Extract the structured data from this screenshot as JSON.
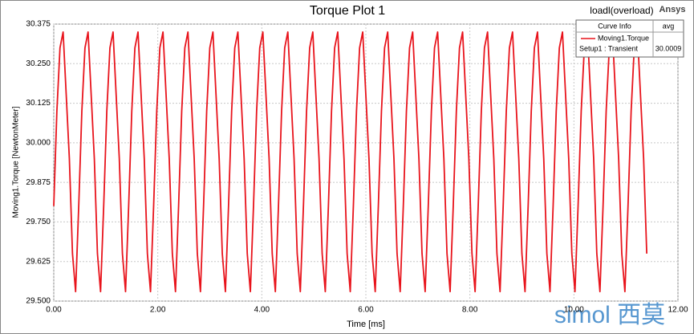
{
  "chart_data": {
    "type": "line",
    "title": "Torque Plot 1",
    "header_left": "loadl(overload)",
    "header_right": "Ansys",
    "x_label": "Time [ms]",
    "y_label": "Moving1.Torque [NewtonMeter]",
    "watermark": "simol 西莫",
    "xlim": [
      0,
      12
    ],
    "xticks": [
      {
        "value": 0,
        "label": "0.00"
      },
      {
        "value": 2,
        "label": "2.00"
      },
      {
        "value": 4,
        "label": "4.00"
      },
      {
        "value": 6,
        "label": "6.00"
      },
      {
        "value": 8,
        "label": "8.00"
      },
      {
        "value": 10,
        "label": "10.00"
      },
      {
        "value": 12,
        "label": "12.00"
      }
    ],
    "ylim": [
      29.5,
      30.375
    ],
    "yticks": [
      {
        "value": 29.5,
        "label": "29.500"
      },
      {
        "value": 29.625,
        "label": "29.625"
      },
      {
        "value": 29.75,
        "label": "29.750"
      },
      {
        "value": 29.875,
        "label": "29.875"
      },
      {
        "value": 30,
        "label": "30.000"
      },
      {
        "value": 30.125,
        "label": "30.125"
      },
      {
        "value": 30.25,
        "label": "30.250"
      },
      {
        "value": 30.375,
        "label": "30.375"
      }
    ],
    "grid": true,
    "legend": {
      "columns": [
        "Curve Info",
        "avg"
      ],
      "rows": [
        [
          "Moving1.Torque",
          ""
        ],
        [
          "Setup1 : Transient",
          "30.0009"
        ]
      ]
    },
    "x": [
      0,
      0.06,
      0.12,
      0.18,
      0.24,
      0.3,
      0.36,
      0.42,
      0.48,
      0.54,
      0.6,
      0.66,
      0.72,
      0.78,
      0.84,
      0.9,
      0.96,
      1.02,
      1.08,
      1.14,
      1.2,
      1.26,
      1.32,
      1.38,
      1.44,
      1.5,
      1.56,
      1.62,
      1.68,
      1.74,
      1.8,
      1.86,
      1.92,
      1.98,
      2.04,
      2.1,
      2.16,
      2.22,
      2.28,
      2.34,
      2.4,
      2.46,
      2.52,
      2.58,
      2.64,
      2.7,
      2.76,
      2.82,
      2.88,
      2.94,
      3,
      3.06,
      3.12,
      3.18,
      3.24,
      3.3,
      3.36,
      3.42,
      3.48,
      3.54,
      3.6,
      3.66,
      3.72,
      3.78,
      3.84,
      3.9,
      3.96,
      4.02,
      4.08,
      4.14,
      4.2,
      4.26,
      4.32,
      4.38,
      4.44,
      4.5,
      4.56,
      4.62,
      4.68,
      4.74,
      4.8,
      4.86,
      4.92,
      4.98,
      5.04,
      5.1,
      5.16,
      5.22,
      5.28,
      5.34,
      5.4,
      5.46,
      5.52,
      5.58,
      5.64,
      5.7,
      5.76,
      5.82,
      5.88,
      5.94,
      6,
      6.06,
      6.12,
      6.18,
      6.24,
      6.3,
      6.36,
      6.42,
      6.48,
      6.54,
      6.6,
      6.66,
      6.72,
      6.78,
      6.84,
      6.9,
      6.96,
      7.02,
      7.08,
      7.14,
      7.2,
      7.26,
      7.32,
      7.38,
      7.44,
      7.5,
      7.56,
      7.62,
      7.68,
      7.74,
      7.8,
      7.86,
      7.92,
      7.98,
      8.04,
      8.1,
      8.16,
      8.22,
      8.28,
      8.34,
      8.4,
      8.46,
      8.52,
      8.58,
      8.64,
      8.7,
      8.76,
      8.82,
      8.88,
      8.94,
      9,
      9.06,
      9.12,
      9.18,
      9.24,
      9.3,
      9.36,
      9.42,
      9.48,
      9.54,
      9.6,
      9.66,
      9.72,
      9.78,
      9.84,
      9.9,
      9.96,
      10.02,
      10.08,
      10.14,
      10.2,
      10.26,
      10.32,
      10.38,
      10.44,
      10.5,
      10.56,
      10.62,
      10.68,
      10.74,
      10.8,
      10.86,
      10.92,
      10.98,
      11.04,
      11.1,
      11.16,
      11.22,
      11.28,
      11.34,
      11.4
    ],
    "series": [
      {
        "name": "Moving1.Torque",
        "color": "#e8141c",
        "values": [
          29.8,
          30.1,
          30.3,
          30.35,
          30.15,
          29.95,
          29.65,
          29.53,
          29.8,
          30.1,
          30.3,
          30.35,
          30.15,
          29.95,
          29.65,
          29.53,
          29.8,
          30.1,
          30.3,
          30.35,
          30.15,
          29.95,
          29.65,
          29.53,
          29.8,
          30.1,
          30.3,
          30.35,
          30.15,
          29.95,
          29.65,
          29.53,
          29.8,
          30.1,
          30.3,
          30.35,
          30.15,
          29.95,
          29.65,
          29.53,
          29.8,
          30.1,
          30.3,
          30.35,
          30.15,
          29.95,
          29.65,
          29.53,
          29.8,
          30.1,
          30.3,
          30.35,
          30.15,
          29.95,
          29.65,
          29.53,
          29.8,
          30.1,
          30.3,
          30.35,
          30.15,
          29.95,
          29.65,
          29.53,
          29.8,
          30.1,
          30.3,
          30.35,
          30.15,
          29.95,
          29.65,
          29.53,
          29.8,
          30.1,
          30.3,
          30.35,
          30.15,
          29.95,
          29.65,
          29.53,
          29.8,
          30.1,
          30.3,
          30.35,
          30.15,
          29.95,
          29.65,
          29.53,
          29.8,
          30.1,
          30.3,
          30.35,
          30.15,
          29.95,
          29.65,
          29.53,
          29.8,
          30.1,
          30.3,
          30.35,
          30.15,
          29.95,
          29.65,
          29.53,
          29.8,
          30.1,
          30.3,
          30.35,
          30.15,
          29.95,
          29.65,
          29.53,
          29.8,
          30.1,
          30.3,
          30.35,
          30.15,
          29.95,
          29.65,
          29.53,
          29.8,
          30.1,
          30.3,
          30.35,
          30.15,
          29.95,
          29.65,
          29.53,
          29.8,
          30.1,
          30.3,
          30.35,
          30.15,
          29.95,
          29.65,
          29.53,
          29.8,
          30.1,
          30.3,
          30.35,
          30.15,
          29.95,
          29.65,
          29.53,
          29.8,
          30.1,
          30.3,
          30.35,
          30.15,
          29.95,
          29.65,
          29.53,
          29.8,
          30.1,
          30.3,
          30.35,
          30.15,
          29.95,
          29.65,
          29.53,
          29.8,
          30.1,
          30.3,
          30.35,
          30.15,
          29.95,
          29.65,
          29.53,
          29.8,
          30.1,
          30.3,
          30.35,
          30.15,
          29.95,
          29.65,
          29.53,
          29.8,
          30.1,
          30.3,
          30.35,
          30.15,
          29.95,
          29.65,
          29.53,
          29.8,
          30.1,
          30.3,
          30.35,
          30.15,
          29.95,
          29.65
        ]
      }
    ]
  }
}
